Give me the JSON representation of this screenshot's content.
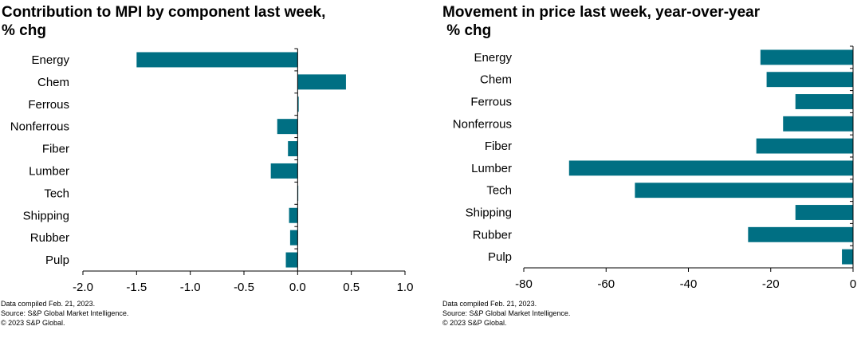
{
  "colors": {
    "bar": "#006f83",
    "axis": "#000000"
  },
  "chart_data": [
    {
      "type": "bar",
      "orientation": "horizontal",
      "title": "Contribution to MPI by component last week, % chg",
      "title_lines": [
        "Contribution to MPI by component last week,",
        "% chg"
      ],
      "categories": [
        "Energy",
        "Chem",
        "Ferrous",
        "Nonferrous",
        "Fiber",
        "Lumber",
        "Tech",
        "Shipping",
        "Rubber",
        "Pulp"
      ],
      "values": [
        -1.5,
        0.45,
        0.01,
        -0.19,
        -0.09,
        -0.25,
        0.0,
        -0.08,
        -0.07,
        -0.11
      ],
      "xlim": [
        -2.0,
        1.0
      ],
      "xticks": [
        "-2.0",
        "-1.5",
        "-1.0",
        "-0.5",
        "0.0",
        "0.5",
        "1.0"
      ],
      "xtick_values": [
        -2.0,
        -1.5,
        -1.0,
        -0.5,
        0.0,
        0.5,
        1.0
      ],
      "grid": false,
      "legend": "none",
      "notes": [
        "Data compiled Feb. 21, 2023.",
        "Source: S&P Global Market Intelligence.",
        "© 2023 S&P Global."
      ]
    },
    {
      "type": "bar",
      "orientation": "horizontal",
      "title": "Movement in price last week, year-over-year % chg",
      "title_lines": [
        "Movement in price last week, year-over-year",
        " % chg"
      ],
      "categories": [
        "Energy",
        "Chem",
        "Ferrous",
        "Nonferrous",
        "Fiber",
        "Lumber",
        "Tech",
        "Shipping",
        "Rubber",
        "Pulp"
      ],
      "values": [
        -22.5,
        -21,
        -14,
        -17,
        -23.5,
        -69,
        -53,
        -14,
        -25.5,
        -2.7
      ],
      "xlim": [
        -80,
        0
      ],
      "xticks": [
        "-80",
        "-60",
        "-40",
        "-20",
        "0"
      ],
      "xtick_values": [
        -80,
        -60,
        -40,
        -20,
        0
      ],
      "grid": false,
      "legend": "none",
      "notes": [
        "Data compiled Feb. 21, 2023.",
        "Source: S&P Global Market Intelligence.",
        "© 2023 S&P Global."
      ]
    }
  ]
}
